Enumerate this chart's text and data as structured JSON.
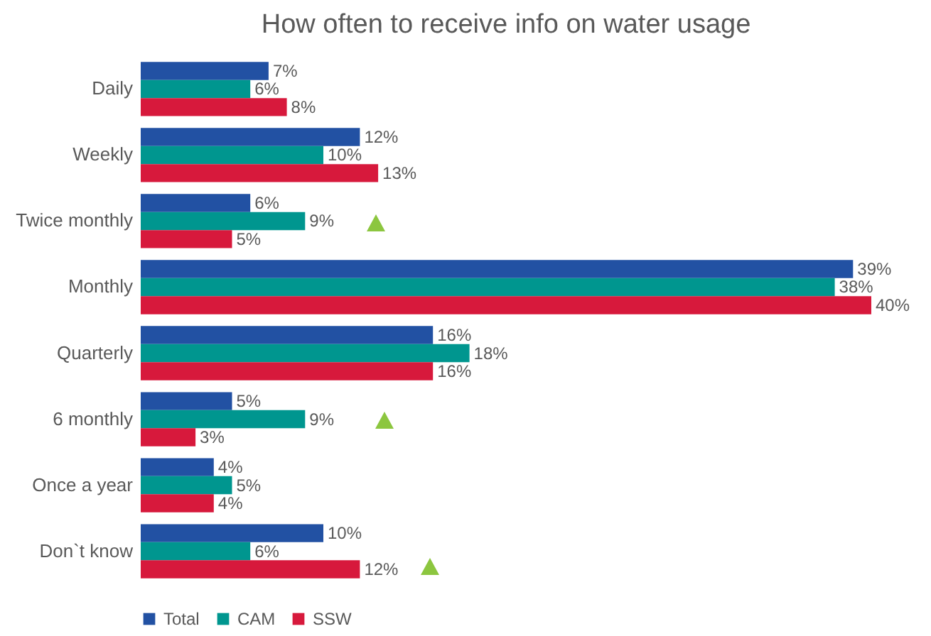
{
  "chart_data": {
    "type": "bar",
    "orientation": "horizontal",
    "title": "How often to receive info on water usage",
    "categories": [
      "Daily",
      "Weekly",
      "Twice monthly",
      "Monthly",
      "Quarterly",
      "6 monthly",
      "Once a year",
      "Don`t know"
    ],
    "series": [
      {
        "name": "Total",
        "color": "#2251a3",
        "values": [
          7,
          12,
          6,
          39,
          16,
          5,
          4,
          10
        ],
        "value_labels": [
          "7%",
          "12%",
          "6%",
          "39%",
          "16%",
          "5%",
          "4%",
          "10%"
        ]
      },
      {
        "name": "CAM",
        "color": "#00968f",
        "values": [
          6,
          10,
          9,
          38,
          18,
          9,
          5,
          6
        ],
        "value_labels": [
          "6%",
          "10%",
          "9%",
          "38%",
          "18%",
          "9%",
          "5%",
          "6%"
        ]
      },
      {
        "name": "SSW",
        "color": "#d7193c",
        "values": [
          8,
          13,
          5,
          40,
          16,
          3,
          4,
          12
        ],
        "value_labels": [
          "8%",
          "13%",
          "5%",
          "40%",
          "16%",
          "3%",
          "4%",
          "12%"
        ]
      }
    ],
    "legend": "bottom",
    "grid": false
  }
}
